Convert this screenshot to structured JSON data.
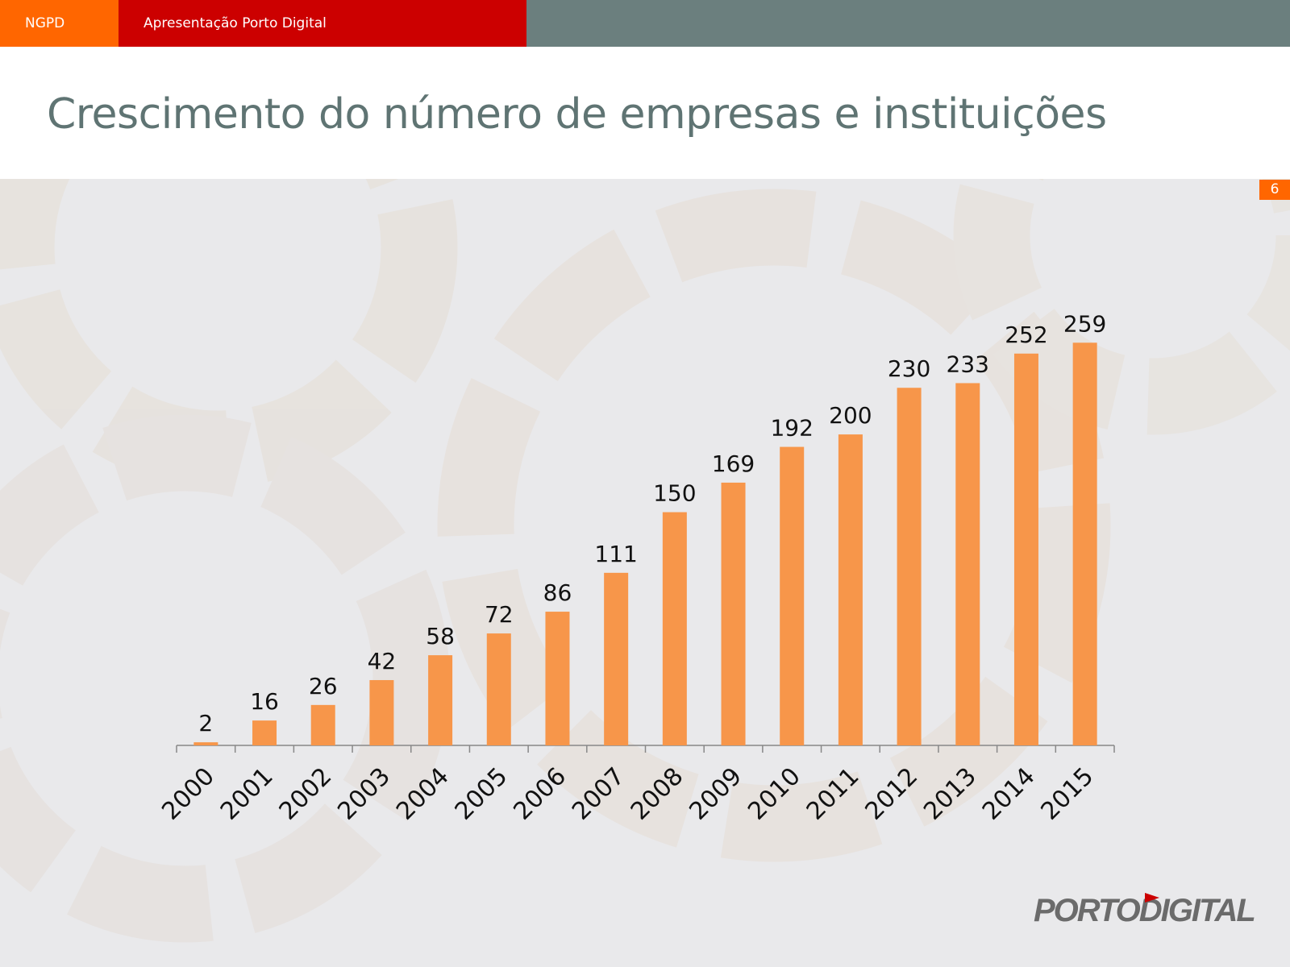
{
  "header": {
    "section_label": "NGPD",
    "presentation_label": "Apresentação Porto Digital"
  },
  "title": "Crescimento do número de empresas e instituições",
  "page_number": "6",
  "logo_text": "PORTODIGITAL",
  "colors": {
    "orange": "#ff6600",
    "red": "#cc0000",
    "gray_bar": "#6b7f7e",
    "title_text": "#5f7473",
    "bar_fill": "#f7964a",
    "panel_bg": "#e9e9eb"
  },
  "chart_data": {
    "type": "bar",
    "categories": [
      "2000",
      "2001",
      "2002",
      "2003",
      "2004",
      "2005",
      "2006",
      "2007",
      "2008",
      "2009",
      "2010",
      "2011",
      "2012",
      "2013",
      "2014",
      "2015"
    ],
    "values": [
      2,
      16,
      26,
      42,
      58,
      72,
      86,
      111,
      150,
      169,
      192,
      200,
      230,
      233,
      252,
      259
    ],
    "ylim": [
      0,
      340
    ],
    "grid": false,
    "legend": "none",
    "data_labels": true
  }
}
